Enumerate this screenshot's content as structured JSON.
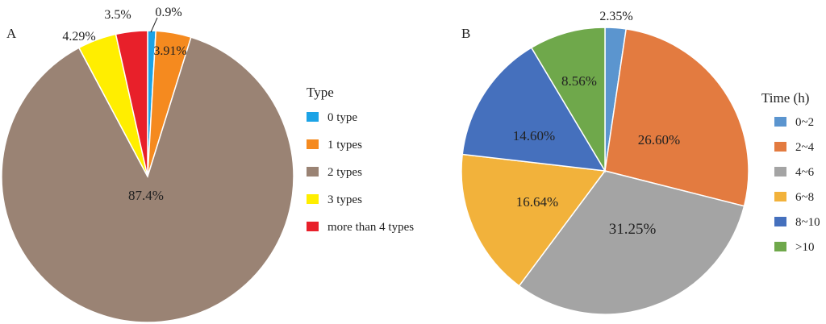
{
  "chart_data": [
    {
      "type": "pie",
      "panel_label": "A",
      "legend_title": "Type",
      "legend_placement": "right",
      "slices": [
        {
          "label": "0 type",
          "value": 0.9,
          "value_label": "0.9%",
          "color": "#1ca3e6"
        },
        {
          "label": "1 types",
          "value": 3.91,
          "value_label": "3.91%",
          "color": "#f58a1f"
        },
        {
          "label": "2 types",
          "value": 87.4,
          "value_label": "87.4%",
          "color": "#9a8374"
        },
        {
          "label": "3 types",
          "value": 4.29,
          "value_label": "4.29%",
          "color": "#ffee00"
        },
        {
          "label": "more than 4 types",
          "value": 3.5,
          "value_label": "3.5%",
          "color": "#e8202a"
        }
      ]
    },
    {
      "type": "pie",
      "panel_label": "B",
      "legend_title": "Time (h)",
      "legend_placement": "right",
      "slices": [
        {
          "label": "0~2",
          "value": 2.35,
          "value_label": "2.35%",
          "color": "#5b95cf"
        },
        {
          "label": "2~4",
          "value": 26.6,
          "value_label": "26.60%",
          "color": "#e37b40"
        },
        {
          "label": "4~6",
          "value": 31.25,
          "value_label": "31.25%",
          "color": "#a4a4a4"
        },
        {
          "label": "6~8",
          "value": 16.64,
          "value_label": "16.64%",
          "color": "#f2b23b"
        },
        {
          "label": "8~10",
          "value": 14.6,
          "value_label": "14.60%",
          "color": "#4570bd"
        },
        {
          "label": ">10",
          "value": 8.56,
          "value_label": "8.56%",
          "color": "#6fa84b"
        }
      ]
    }
  ]
}
